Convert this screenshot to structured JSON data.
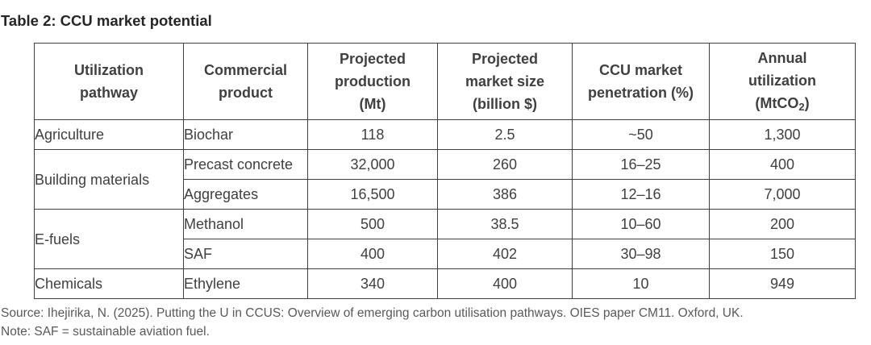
{
  "title": "Table 2: CCU market potential",
  "headers": {
    "pathway": [
      "Utilization",
      "pathway"
    ],
    "product": [
      "Commercial",
      "product"
    ],
    "production": [
      "Projected",
      "production",
      "(Mt)"
    ],
    "market_size": [
      "Projected",
      "market size",
      "(billion $)"
    ],
    "penetration": [
      "CCU market",
      "penetration (%)"
    ],
    "utilization": [
      "Annual",
      "utilization"
    ],
    "utilization_unit": {
      "open": "(MtCO",
      "sub": "2",
      "close": ")"
    }
  },
  "rows": [
    {
      "pathway": "Agriculture",
      "product": "Biochar",
      "production": "118",
      "market_size": "2.5",
      "penetration": "~50",
      "utilization": "1,300"
    },
    {
      "pathway": "Building materials",
      "product": "Precast concrete",
      "production": "32,000",
      "market_size": "260",
      "penetration": "16–25",
      "utilization": "400"
    },
    {
      "product": "Aggregates",
      "production": "16,500",
      "market_size": "386",
      "penetration": "12–16",
      "utilization": "7,000"
    },
    {
      "pathway": "E-fuels",
      "product": "Methanol",
      "production": "500",
      "market_size": "38.5",
      "penetration": "10–60",
      "utilization": "200"
    },
    {
      "product": "SAF",
      "production": "400",
      "market_size": "402",
      "penetration": "30–98",
      "utilization": "150"
    },
    {
      "pathway": "Chemicals",
      "product": "Ethylene",
      "production": "340",
      "market_size": "400",
      "penetration": "10",
      "utilization": "949"
    }
  ],
  "footer": {
    "source": "Source: Ihejirika, N. (2025). Putting the U in CCUS: Overview of emerging carbon utilisation pathways. OIES paper CM11. Oxford, UK.",
    "note": "Note: SAF = sustainable aviation fuel."
  }
}
